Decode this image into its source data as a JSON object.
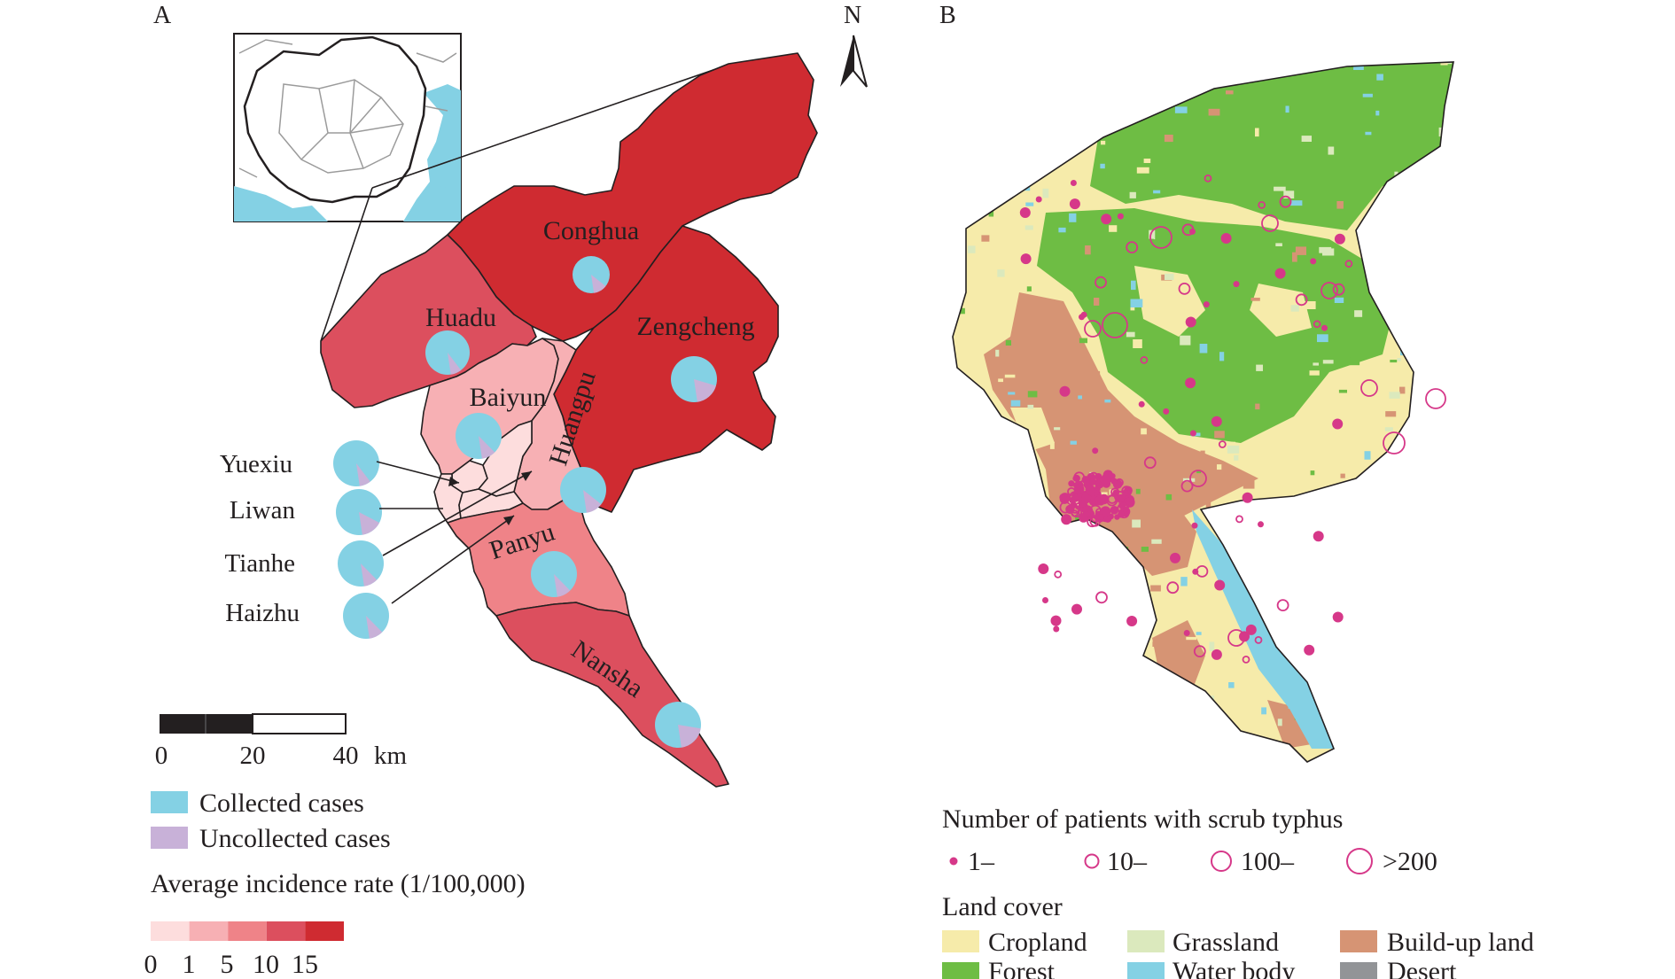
{
  "panels": {
    "a_letter": "A",
    "b_letter": "B"
  },
  "north_arrow": {
    "label": "N"
  },
  "colors": {
    "collected": "#84d1e4",
    "uncollected": "#c8b1d8",
    "incidence_scale": [
      "#fddddd",
      "#f7b0b4",
      "#ef8388",
      "#dc4f5e",
      "#cf2b31"
    ],
    "cropland": "#f6ebaa",
    "grassland": "#dbe9bd",
    "build_up": "#d69474",
    "forest": "#6ebd44",
    "water": "#84d1e4",
    "desert": "#929497",
    "patient_marker": "#d63889"
  },
  "districts": [
    {
      "name": "Conghua",
      "incidence_class": 4,
      "collected_pct": 88
    },
    {
      "name": "Zengcheng",
      "incidence_class": 4,
      "collected_pct": 82
    },
    {
      "name": "Huadu",
      "incidence_class": 3,
      "collected_pct": 92
    },
    {
      "name": "Baiyun",
      "incidence_class": 1,
      "collected_pct": 90
    },
    {
      "name": "Huangpu",
      "incidence_class": 1,
      "collected_pct": 88
    },
    {
      "name": "Panyu",
      "incidence_class": 2,
      "collected_pct": 90
    },
    {
      "name": "Nansha",
      "incidence_class": 3,
      "collected_pct": 80
    },
    {
      "name": "Yuexiu",
      "incidence_class": 0,
      "collected_pct": 92
    },
    {
      "name": "Liwan",
      "incidence_class": 0,
      "collected_pct": 85
    },
    {
      "name": "Tianhe",
      "incidence_class": 0,
      "collected_pct": 90
    },
    {
      "name": "Haizhu",
      "incidence_class": 0,
      "collected_pct": 90
    }
  ],
  "scale_bar": {
    "ticks": [
      "0",
      "20",
      "40"
    ],
    "unit": "km"
  },
  "legend_a": {
    "collected": "Collected cases",
    "uncollected": "Uncollected cases",
    "incidence_title": "Average incidence rate (1/100,000)",
    "incidence_ticks": [
      "0",
      "1",
      "5",
      "10",
      "15"
    ]
  },
  "legend_b": {
    "patients_title": "Number of patients with scrub typhus",
    "patient_classes": [
      "1–",
      "10–",
      "100–",
      ">200"
    ],
    "landcover_title": "Land cover",
    "landcover_classes": [
      "Cropland",
      "Grassland",
      "Build-up land",
      "Forest",
      "Water body",
      "Desert"
    ]
  }
}
